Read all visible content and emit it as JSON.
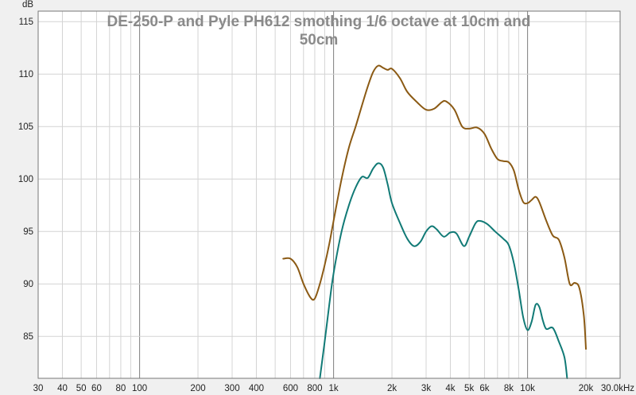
{
  "chart_data": {
    "type": "line",
    "title_lines": [
      "DE-250-P  and Pyle PH612 smothing 1/6 octave at 10cm and",
      "50cm"
    ],
    "ylabel": "dB",
    "xscale": "log",
    "xlim": [
      30,
      30000
    ],
    "ylim": [
      81,
      116
    ],
    "grid": true,
    "colors": {
      "plot_bg": "#ffffff",
      "page_bg": "#f0f0f0",
      "grid_minor": "#d4d4d4",
      "grid_major": "#888888"
    },
    "y_ticks": [
      85,
      90,
      95,
      100,
      105,
      110,
      115
    ],
    "x_ticks": [
      {
        "value": 30,
        "label": "30"
      },
      {
        "value": 40,
        "label": "40"
      },
      {
        "value": 50,
        "label": "50"
      },
      {
        "value": 60,
        "label": "60"
      },
      {
        "value": 80,
        "label": "80"
      },
      {
        "value": 100,
        "label": "100"
      },
      {
        "value": 200,
        "label": "200"
      },
      {
        "value": 300,
        "label": "300"
      },
      {
        "value": 400,
        "label": "400"
      },
      {
        "value": 600,
        "label": "600"
      },
      {
        "value": 800,
        "label": "800"
      },
      {
        "value": 1000,
        "label": "1k"
      },
      {
        "value": 2000,
        "label": "2k"
      },
      {
        "value": 3000,
        "label": "3k"
      },
      {
        "value": 4000,
        "label": "4k"
      },
      {
        "value": 5000,
        "label": "5k"
      },
      {
        "value": 6000,
        "label": "6k"
      },
      {
        "value": 8000,
        "label": "8k"
      },
      {
        "value": 10000,
        "label": "10k"
      },
      {
        "value": 20000,
        "label": "20k"
      },
      {
        "value": 30000,
        "label": "30.0kHz"
      }
    ],
    "series": [
      {
        "color": "#8b5a14",
        "points": [
          [
            550,
            92.4
          ],
          [
            600,
            92.4
          ],
          [
            650,
            91.6
          ],
          [
            700,
            90.0
          ],
          [
            760,
            88.7
          ],
          [
            800,
            88.6
          ],
          [
            850,
            90.0
          ],
          [
            900,
            91.8
          ],
          [
            950,
            93.8
          ],
          [
            1000,
            96.0
          ],
          [
            1100,
            100.0
          ],
          [
            1200,
            103.0
          ],
          [
            1300,
            105.0
          ],
          [
            1400,
            107.0
          ],
          [
            1500,
            108.8
          ],
          [
            1600,
            110.2
          ],
          [
            1700,
            110.8
          ],
          [
            1800,
            110.6
          ],
          [
            1900,
            110.4
          ],
          [
            2000,
            110.5
          ],
          [
            2200,
            109.6
          ],
          [
            2400,
            108.3
          ],
          [
            2700,
            107.3
          ],
          [
            3000,
            106.6
          ],
          [
            3300,
            106.7
          ],
          [
            3600,
            107.3
          ],
          [
            3800,
            107.4
          ],
          [
            4200,
            106.6
          ],
          [
            4600,
            105.0
          ],
          [
            5000,
            104.8
          ],
          [
            5500,
            104.9
          ],
          [
            6000,
            104.3
          ],
          [
            6500,
            102.9
          ],
          [
            7000,
            101.9
          ],
          [
            7500,
            101.7
          ],
          [
            8000,
            101.6
          ],
          [
            8500,
            100.8
          ],
          [
            9000,
            99.0
          ],
          [
            9500,
            97.8
          ],
          [
            10000,
            97.7
          ],
          [
            10500,
            98.0
          ],
          [
            11000,
            98.3
          ],
          [
            11500,
            97.8
          ],
          [
            12500,
            96.0
          ],
          [
            13500,
            94.6
          ],
          [
            14500,
            94.2
          ],
          [
            15500,
            92.5
          ],
          [
            16500,
            90.0
          ],
          [
            17500,
            90.1
          ],
          [
            18500,
            89.6
          ],
          [
            19500,
            87.0
          ],
          [
            20000,
            83.8
          ]
        ]
      },
      {
        "color": "#117a76",
        "points": [
          [
            850,
            81.0
          ],
          [
            900,
            84.5
          ],
          [
            950,
            88.0
          ],
          [
            1000,
            91.0
          ],
          [
            1100,
            95.0
          ],
          [
            1200,
            97.5
          ],
          [
            1300,
            99.2
          ],
          [
            1400,
            100.2
          ],
          [
            1500,
            100.1
          ],
          [
            1600,
            101.0
          ],
          [
            1700,
            101.5
          ],
          [
            1800,
            101.1
          ],
          [
            1900,
            99.5
          ],
          [
            2000,
            97.7
          ],
          [
            2200,
            95.8
          ],
          [
            2400,
            94.3
          ],
          [
            2600,
            93.6
          ],
          [
            2800,
            94.0
          ],
          [
            3000,
            95.0
          ],
          [
            3200,
            95.5
          ],
          [
            3400,
            95.2
          ],
          [
            3700,
            94.5
          ],
          [
            4000,
            94.9
          ],
          [
            4300,
            94.8
          ],
          [
            4700,
            93.6
          ],
          [
            5000,
            94.5
          ],
          [
            5400,
            95.8
          ],
          [
            5700,
            96.0
          ],
          [
            6200,
            95.7
          ],
          [
            6800,
            95.0
          ],
          [
            7500,
            94.3
          ],
          [
            8000,
            93.7
          ],
          [
            8500,
            92.0
          ],
          [
            9000,
            89.5
          ],
          [
            9500,
            86.8
          ],
          [
            10000,
            85.6
          ],
          [
            10500,
            86.4
          ],
          [
            11000,
            88.0
          ],
          [
            11500,
            87.8
          ],
          [
            12000,
            86.5
          ],
          [
            12500,
            85.7
          ],
          [
            13500,
            85.8
          ],
          [
            14500,
            84.5
          ],
          [
            15500,
            83.0
          ],
          [
            16000,
            81.0
          ]
        ]
      }
    ]
  }
}
